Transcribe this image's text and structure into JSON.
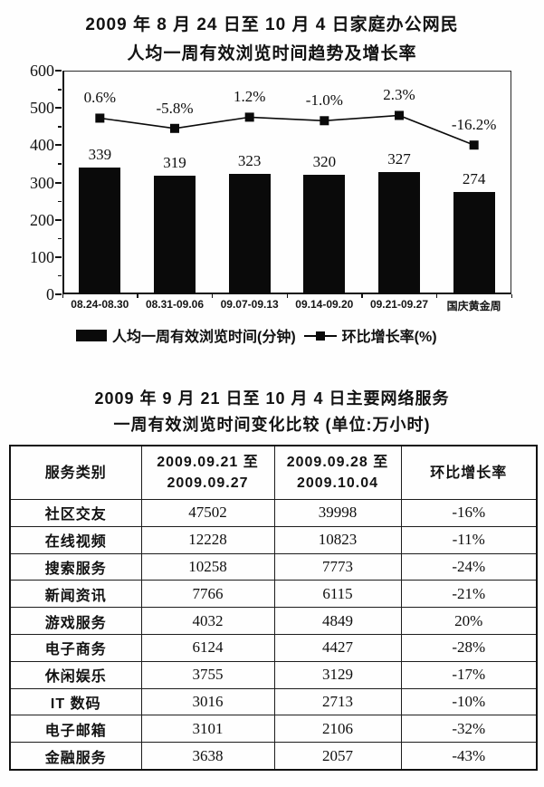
{
  "page": {
    "background": "#fefefe",
    "ink": "#111111"
  },
  "chart": {
    "title_line1": "2009 年 8 月 24 日至 10 月 4 日家庭办公网民",
    "title_line2": "人均一周有效浏览时间趋势及增长率",
    "legend": [
      {
        "swatch": "bar",
        "label": "人均一周有效浏览时间(分钟)"
      },
      {
        "swatch": "line-marker",
        "label": "环比增长率(%)"
      }
    ]
  },
  "chart_data": {
    "type": "bar",
    "subtype": "bar+line combo",
    "categories": [
      "08.24-08.30",
      "08.31-09.06",
      "09.07-09.13",
      "09.14-09.20",
      "09.21-09.27",
      "国庆黄金周"
    ],
    "series": [
      {
        "name": "人均一周有效浏览时间(分钟)",
        "type": "bar",
        "color": "#0a0a0a",
        "values": [
          339,
          319,
          323,
          320,
          327,
          274
        ]
      },
      {
        "name": "环比增长率(%)",
        "type": "line",
        "color": "#0a0a0a",
        "marker": "square",
        "values": [
          0.6,
          -5.8,
          1.2,
          -1.0,
          2.3,
          -16.2
        ],
        "labels": [
          "0.6%",
          "-5.8%",
          "1.2%",
          "-1.0%",
          "2.3%",
          "-16.2%"
        ]
      }
    ],
    "ylim": [
      0,
      600
    ],
    "yticks": [
      0,
      100,
      200,
      300,
      400,
      500,
      600
    ],
    "grid": false,
    "legend_position": "bottom"
  },
  "table": {
    "title_line1": "2009 年 9 月 21 日至 10 月 4 日主要网络服务",
    "title_line2": "一周有效浏览时间变化比较 (单位:万小时)",
    "headers": [
      [
        "服务类别"
      ],
      [
        "2009.09.21 至",
        "2009.09.27"
      ],
      [
        "2009.09.28 至",
        "2009.10.04"
      ],
      [
        "环比增长率"
      ]
    ],
    "rows": [
      [
        "社区交友",
        "47502",
        "39998",
        "-16%"
      ],
      [
        "在线视频",
        "12228",
        "10823",
        "-11%"
      ],
      [
        "搜索服务",
        "10258",
        "7773",
        "-24%"
      ],
      [
        "新闻资讯",
        "7766",
        "6115",
        "-21%"
      ],
      [
        "游戏服务",
        "4032",
        "4849",
        "20%"
      ],
      [
        "电子商务",
        "6124",
        "4427",
        "-28%"
      ],
      [
        "休闲娱乐",
        "3755",
        "3129",
        "-17%"
      ],
      [
        "IT 数码",
        "3016",
        "2713",
        "-10%"
      ],
      [
        "电子邮箱",
        "3101",
        "2106",
        "-32%"
      ],
      [
        "金融服务",
        "3638",
        "2057",
        "-43%"
      ]
    ]
  }
}
